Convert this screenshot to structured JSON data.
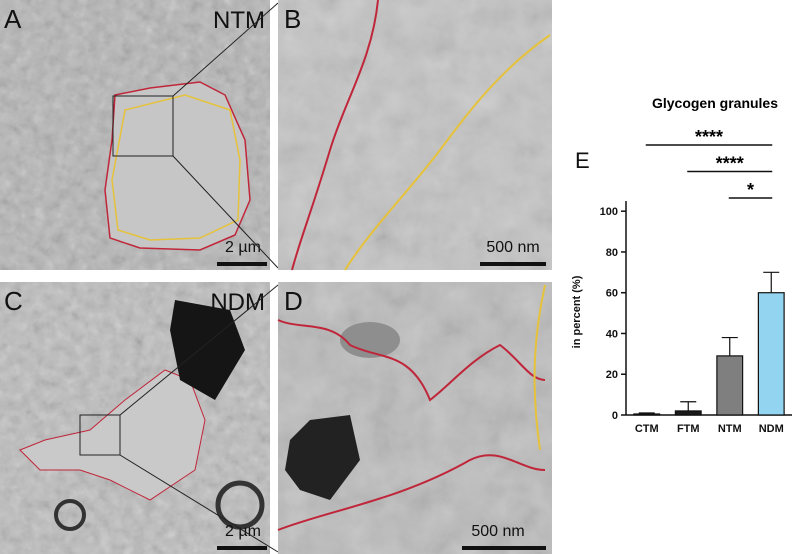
{
  "panels": {
    "a": {
      "label": "A",
      "group": "NTM",
      "scale": "2 µm"
    },
    "b": {
      "label": "B",
      "scale": "500 nm"
    },
    "c": {
      "label": "C",
      "group": "NDM",
      "scale": "2 µm"
    },
    "d": {
      "label": "D",
      "scale": "500 nm"
    }
  },
  "chart_data": {
    "type": "bar",
    "panel_label": "E",
    "title": "Glycogen granules",
    "y_label": "in percent (%)",
    "categories": [
      "CTM",
      "FTM",
      "NTM",
      "NDM"
    ],
    "values": [
      0.5,
      2,
      29,
      60
    ],
    "errors": [
      0.5,
      4.5,
      9,
      10
    ],
    "colors": [
      "#1a1a1a",
      "#1a1a1a",
      "#7f7f7f",
      "#93d5f0"
    ],
    "ylim": [
      0,
      105
    ],
    "yticks": [
      0,
      20,
      40,
      60,
      80,
      100
    ],
    "significance": [
      {
        "from": 0,
        "to": 3,
        "label": "****"
      },
      {
        "from": 1,
        "to": 3,
        "label": "****"
      },
      {
        "from": 2,
        "to": 3,
        "label": "*"
      }
    ]
  }
}
